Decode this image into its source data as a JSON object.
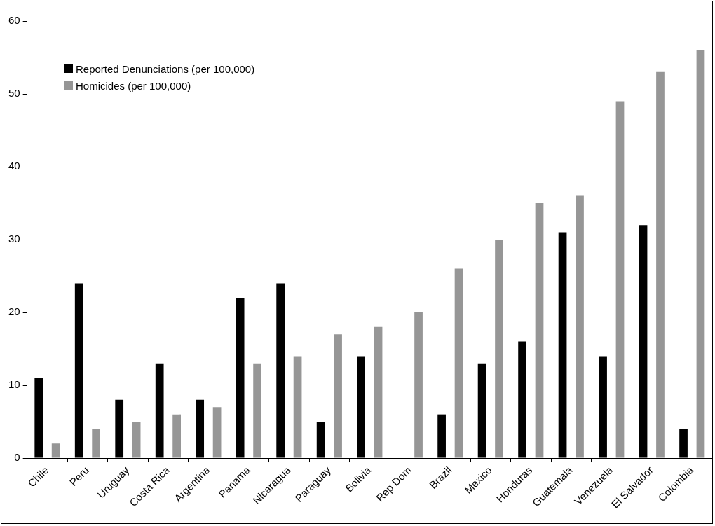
{
  "chart_data": {
    "type": "bar",
    "categories": [
      "Chile",
      "Peru",
      "Uruguay",
      "Costa Rica",
      "Argentina",
      "Panama",
      "Nicaragua",
      "Paraguay",
      "Bolivia",
      "Rep Dom",
      "Brazil",
      "Mexico",
      "Honduras",
      "Guatemala",
      "Venezuela",
      "El Salvador",
      "Colombia"
    ],
    "series": [
      {
        "name": "Reported Denunciations (per 100,000)",
        "color": "#000000",
        "values": [
          11,
          24,
          8,
          13,
          8,
          22,
          24,
          5,
          14,
          null,
          6,
          13,
          16,
          31,
          14,
          32,
          4
        ]
      },
      {
        "name": "Homicides (per 100,000)",
        "color": "#969696",
        "values": [
          2,
          4,
          5,
          6,
          7,
          13,
          14,
          17,
          18,
          20,
          26,
          30,
          35,
          36,
          49,
          53,
          56
        ]
      }
    ],
    "ylim": [
      0,
      60
    ],
    "yticks": [
      0,
      10,
      20,
      30,
      40,
      50,
      60
    ],
    "grid": false,
    "legend": "top left"
  }
}
